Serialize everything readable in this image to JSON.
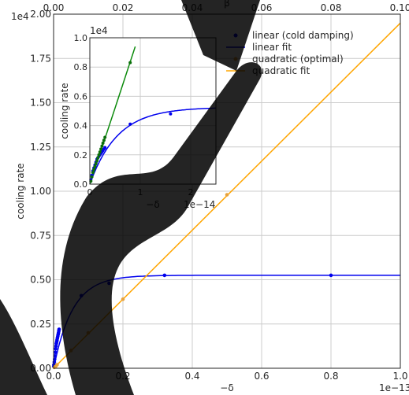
{
  "chart_data": [
    {
      "panel": "main",
      "type": "scatter",
      "xlabel": "−δ",
      "ylabel": "cooling rate",
      "x_multiplier": "1e−13",
      "y_multiplier": "1e4",
      "xlim": [
        0,
        1.0
      ],
      "ylim": [
        0,
        2.0
      ],
      "xticks": [
        0.0,
        0.2,
        0.4,
        0.6,
        0.8,
        1.0
      ],
      "xtick_labels": [
        "0.0",
        "0.2",
        "0.4",
        "0.6",
        "0.8",
        "1.0"
      ],
      "yticks": [
        0.0,
        0.25,
        0.5,
        0.75,
        1.0,
        1.25,
        1.5,
        1.75,
        2.0
      ],
      "ytick_labels": [
        "0.00",
        "0.25",
        "0.50",
        "0.75",
        "1.00",
        "1.25",
        "1.50",
        "1.75",
        "2.00"
      ],
      "top_axis": {
        "label": "β",
        "lim": [
          0,
          0.1
        ],
        "ticks": [
          0.0,
          0.02,
          0.04,
          0.06,
          0.08,
          0.1
        ],
        "tick_labels": [
          "0.00",
          "0.02",
          "0.04",
          "0.06",
          "0.08",
          "0.10"
        ]
      },
      "grid": true,
      "legend_position": "top-right",
      "legend": [
        {
          "label": "linear (cold damping)",
          "kind": "marker",
          "color": "#0000ee"
        },
        {
          "label": "linear fit",
          "kind": "line",
          "color": "#0000ee"
        },
        {
          "label": "quadratic (optimal)",
          "kind": "marker",
          "color": "#e8a33d"
        },
        {
          "label": "quadratic fit",
          "kind": "line",
          "color": "#ffa500"
        }
      ],
      "series": [
        {
          "name": "linear (cold damping)",
          "kind": "scatter",
          "color": "#0000ee",
          "x": [
            0.0005,
            0.001,
            0.002,
            0.003,
            0.004,
            0.005,
            0.006,
            0.007,
            0.008,
            0.009,
            0.01,
            0.011,
            0.012,
            0.013,
            0.014,
            0.015,
            0.016,
            0.08,
            0.16,
            0.32,
            0.8
          ],
          "y": [
            0.01,
            0.02,
            0.035,
            0.05,
            0.07,
            0.09,
            0.11,
            0.125,
            0.14,
            0.15,
            0.16,
            0.17,
            0.18,
            0.19,
            0.2,
            0.21,
            0.22,
            0.41,
            0.48,
            0.525,
            0.525
          ]
        },
        {
          "name": "linear fit",
          "kind": "line",
          "color": "#0000ee",
          "model": "saturating",
          "a": 0.525,
          "tau": 0.055,
          "xrange": [
            0.0,
            1.0
          ]
        },
        {
          "name": "quadratic (optimal)",
          "kind": "scatter",
          "color": "#e8a33d",
          "x": [
            0.002,
            0.006,
            0.01,
            0.05,
            0.1,
            0.2,
            0.5
          ],
          "y": [
            0.005,
            0.01,
            0.02,
            0.1,
            0.2,
            0.39,
            0.98
          ]
        },
        {
          "name": "quadratic fit",
          "kind": "line",
          "color": "#ffa500",
          "x": [
            0.0,
            1.0
          ],
          "y": [
            0.0,
            1.95
          ]
        }
      ]
    },
    {
      "panel": "inset",
      "type": "scatter",
      "xlabel": "−δ",
      "ylabel": "cooling rate",
      "x_multiplier": "1e−14",
      "y_multiplier": "1e4",
      "xlim": [
        0,
        2.5
      ],
      "ylim": [
        0,
        1.0
      ],
      "xticks": [
        0,
        1,
        2
      ],
      "xtick_labels": [
        "0",
        "1",
        "2"
      ],
      "yticks": [
        0.0,
        0.2,
        0.4,
        0.6,
        0.8,
        1.0
      ],
      "ytick_labels": [
        "0.0",
        "0.2",
        "0.4",
        "0.6",
        "0.8",
        "1.0"
      ],
      "grid": true,
      "series": [
        {
          "name": "",
          "kind": "scatter",
          "color": "#0000ee",
          "x": [
            0.02,
            0.04,
            0.06,
            0.08,
            0.1,
            0.12,
            0.14,
            0.16,
            0.18,
            0.2,
            0.22,
            0.24,
            0.26,
            0.28,
            0.3,
            0.8,
            1.6
          ],
          "y": [
            0.03,
            0.06,
            0.09,
            0.11,
            0.13,
            0.15,
            0.17,
            0.18,
            0.19,
            0.2,
            0.21,
            0.22,
            0.23,
            0.24,
            0.25,
            0.41,
            0.48
          ]
        },
        {
          "name": "",
          "kind": "line",
          "color": "#0000ee",
          "model": "saturating",
          "a": 0.525,
          "tau": 0.55,
          "xrange": [
            0.0,
            2.5
          ]
        },
        {
          "name": "",
          "kind": "scatter",
          "color": "#0a6e0a",
          "x": [
            0.02,
            0.04,
            0.06,
            0.08,
            0.1,
            0.12,
            0.14,
            0.16,
            0.18,
            0.2,
            0.22,
            0.24,
            0.26,
            0.28,
            0.3,
            0.8
          ],
          "y": [
            0.02,
            0.05,
            0.08,
            0.1,
            0.12,
            0.14,
            0.16,
            0.18,
            0.2,
            0.22,
            0.24,
            0.26,
            0.28,
            0.3,
            0.32,
            0.83
          ]
        },
        {
          "name": "",
          "kind": "line",
          "color": "#0a8a0a",
          "x": [
            0.0,
            0.5,
            0.9
          ],
          "y": [
            0.0,
            0.52,
            0.94
          ]
        }
      ]
    }
  ]
}
